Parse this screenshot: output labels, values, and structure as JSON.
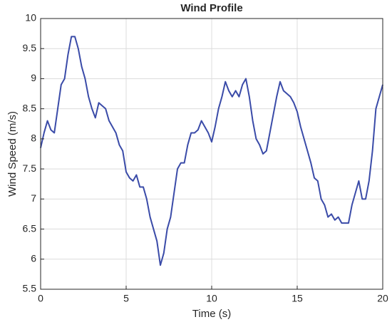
{
  "chart_data": {
    "type": "line",
    "title": "Wind Profile",
    "x_label": "Time (s)",
    "y_label": "Wind Speed (m/s)",
    "x": [
      0,
      0.2,
      0.4,
      0.6,
      0.8,
      1,
      1.2,
      1.4,
      1.6,
      1.8,
      2,
      2.2,
      2.4,
      2.6,
      2.8,
      3,
      3.2,
      3.4,
      3.6,
      3.8,
      4,
      4.2,
      4.4,
      4.6,
      4.8,
      5,
      5.2,
      5.4,
      5.6,
      5.8,
      6,
      6.2,
      6.4,
      6.6,
      6.8,
      7,
      7.2,
      7.4,
      7.6,
      7.8,
      8,
      8.2,
      8.4,
      8.6,
      8.8,
      9,
      9.2,
      9.4,
      9.6,
      9.8,
      10,
      10.2,
      10.4,
      10.6,
      10.8,
      11,
      11.2,
      11.4,
      11.6,
      11.8,
      12,
      12.2,
      12.4,
      12.6,
      12.8,
      13,
      13.2,
      13.4,
      13.6,
      13.8,
      14,
      14.2,
      14.4,
      14.6,
      14.8,
      15,
      15.2,
      15.4,
      15.6,
      15.8,
      16,
      16.2,
      16.4,
      16.6,
      16.8,
      17,
      17.2,
      17.4,
      17.6,
      17.8,
      18,
      18.2,
      18.4,
      18.6,
      18.8,
      19,
      19.2,
      19.4,
      19.6,
      19.8,
      20
    ],
    "series": [
      {
        "name": "Wind Speed",
        "color": "#3a4ba8",
        "values": [
          7.85,
          8.1,
          8.3,
          8.15,
          8.1,
          8.5,
          8.9,
          9.0,
          9.4,
          9.7,
          9.7,
          9.5,
          9.2,
          9.0,
          8.7,
          8.5,
          8.35,
          8.6,
          8.55,
          8.5,
          8.3,
          8.2,
          8.1,
          7.9,
          7.8,
          7.45,
          7.35,
          7.3,
          7.4,
          7.2,
          7.2,
          7.0,
          6.7,
          6.5,
          6.3,
          5.9,
          6.1,
          6.5,
          6.7,
          7.1,
          7.5,
          7.6,
          7.6,
          7.9,
          8.1,
          8.1,
          8.15,
          8.3,
          8.2,
          8.1,
          7.95,
          8.2,
          8.5,
          8.7,
          8.95,
          8.8,
          8.7,
          8.8,
          8.7,
          8.9,
          9.0,
          8.7,
          8.3,
          8.0,
          7.9,
          7.75,
          7.8,
          8.1,
          8.4,
          8.7,
          8.95,
          8.8,
          8.75,
          8.7,
          8.6,
          8.45,
          8.2,
          8.0,
          7.8,
          7.6,
          7.35,
          7.3,
          7.0,
          6.9,
          6.7,
          6.75,
          6.65,
          6.7,
          6.6,
          6.6,
          6.6,
          6.9,
          7.1,
          7.3,
          7.0,
          7.0,
          7.3,
          7.8,
          8.5,
          8.7,
          8.9
        ]
      }
    ],
    "xlim": [
      0,
      20
    ],
    "xticks": [
      0,
      5,
      10,
      15,
      20
    ],
    "ylim": [
      5.5,
      10
    ],
    "yticks": [
      5.5,
      6,
      6.5,
      7,
      7.5,
      8,
      8.5,
      9,
      9.5,
      10
    ],
    "grid": true
  }
}
